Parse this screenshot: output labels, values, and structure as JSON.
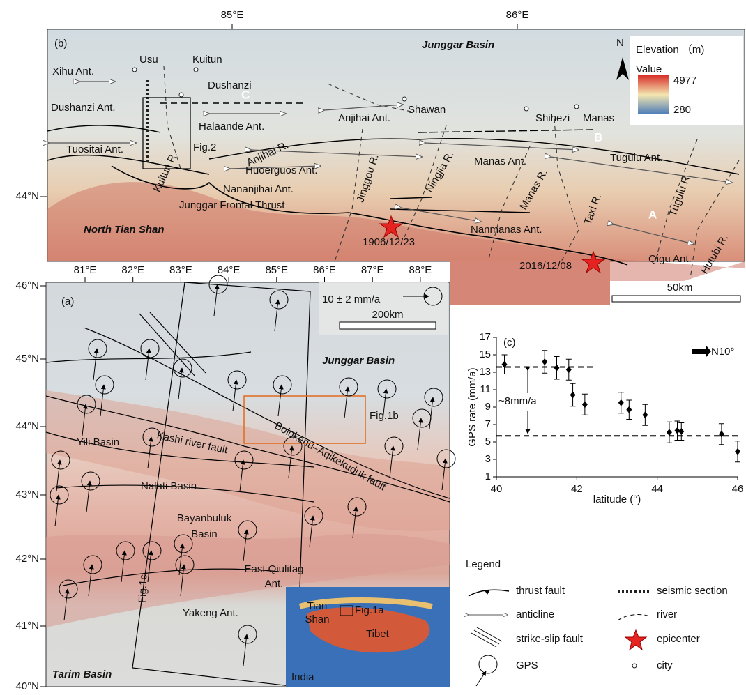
{
  "panel_b": {
    "label": "(b)",
    "lon_labels": [
      "85°E",
      "86°E"
    ],
    "lat_labels": [
      "44°N"
    ],
    "places": [
      "Junggar Basin",
      "Xihu Ant.",
      "Usu",
      "Kuitun",
      "Dushanzi",
      "C",
      "Dushanzi Ant.",
      "Halaande Ant.",
      "Anjihai Ant.",
      "Shawan",
      "Shihezi",
      "Manas",
      "B",
      "Tuositai Ant.",
      "Fig.2",
      "Anjihai R.",
      "Kuitun R.",
      "Huoerguos Ant.",
      "Nananjihai Ant.",
      "Tugulu Ant.",
      "Manas Ant.",
      "Junggar Frontal Thrust",
      "Jinggou R.",
      "Ningjia R.",
      "Manas R.",
      "Taxi R.",
      "Tugulu R.",
      "A",
      "Nanmanas Ant.",
      "North Tian Shan",
      "1906/12/23",
      "Qigu Ant.",
      "Hutubi R.",
      "2016/12/08"
    ],
    "scale_bar": "50km",
    "north": "N",
    "elevation_legend": {
      "title": "Elevation （m)",
      "subtitle": "Value",
      "max": 4977,
      "min": 280
    }
  },
  "panel_a": {
    "label": "(a)",
    "lon_labels": [
      "81°E",
      "82°E",
      "83°E",
      "84°E",
      "85°E",
      "86°E",
      "87°E",
      "88°E"
    ],
    "lat_labels": [
      "46°N",
      "45°N",
      "44°N",
      "43°N",
      "42°N",
      "41°N",
      "40°N"
    ],
    "gps_scale": "10 ± 2 mm/a",
    "scale_bar": "200km",
    "places": [
      "Junggar Basin",
      "Fig.1b",
      "Kashi river fault",
      "Bolokenu–Aqikekuduk fault",
      "Yili Basin",
      "Nalati Basin",
      "Yakeng Ant.",
      "Fig.1c",
      "Tarim Basin"
    ],
    "bayanbuluk": [
      "Bayanbuluk",
      "Basin"
    ],
    "qiulitag": [
      "East Qiulitag",
      "Ant."
    ],
    "inset": {
      "tian_shan": [
        "Tian",
        "Shan"
      ],
      "box": "Fig.1a",
      "tibet": "Tibet",
      "india": "India"
    }
  },
  "legend": {
    "title": "Legend",
    "items": [
      "thrust fault",
      "seismic section",
      "anticline",
      "river",
      "strike-slip fault",
      "epicenter",
      "GPS",
      "city"
    ]
  },
  "chart_data": {
    "type": "scatter",
    "title": "(c)",
    "x_label": "latitude (°)",
    "y_label": "GPS rate (mm/a)",
    "annotation": "~8mm/a",
    "direction": "N10°",
    "x": [
      40.2,
      41.2,
      41.5,
      41.8,
      41.9,
      42.2,
      43.1,
      43.3,
      43.7,
      44.3,
      44.5,
      44.6,
      45.6,
      46.0
    ],
    "values": [
      13.9,
      14.2,
      13.5,
      13.3,
      10.4,
      9.3,
      9.5,
      8.7,
      8.1,
      6.1,
      6.3,
      6.2,
      5.9,
      3.9
    ],
    "errors": [
      1.1,
      1.3,
      1.3,
      1.2,
      1.3,
      1.2,
      1.2,
      1.1,
      1.2,
      1.2,
      1.1,
      1.0,
      1.2,
      1.2
    ],
    "color": "#000000",
    "reference_lines": [
      {
        "y": 13.6,
        "x": [
          40,
          42.4
        ]
      },
      {
        "y": 5.7,
        "x": [
          40,
          46
        ]
      }
    ],
    "xlim": [
      40,
      46
    ],
    "ylim": [
      1,
      17
    ],
    "xticks": [
      40,
      42,
      44,
      46
    ],
    "yticks": [
      1,
      3,
      5,
      7,
      9,
      11,
      13,
      15,
      17
    ]
  }
}
